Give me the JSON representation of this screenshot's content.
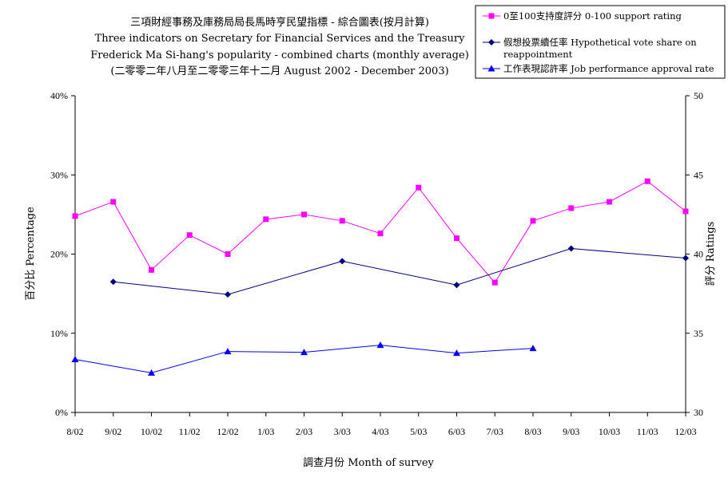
{
  "chart_data": {
    "type": "line",
    "title_lines": [
      "三項財經事務及庫務局局長馬時亨民望指標 - 綜合圖表(按月計算)",
      "Three indicators on Secretary for Financial Services and the Treasury",
      "Frederick Ma Si-hang's popularity - combined charts (monthly average)",
      "(二零零二年八月至二零零三年十二月 August 2002 - December 2003)"
    ],
    "xlabel": "調查月份 Month of survey",
    "ylabel_left": "百分比 Percentage",
    "ylabel_right": "評分 Ratings",
    "categories": [
      "8/02",
      "9/02",
      "10/02",
      "11/02",
      "12/02",
      "1/03",
      "2/03",
      "3/03",
      "4/03",
      "5/03",
      "6/03",
      "7/03",
      "8/03",
      "9/03",
      "10/03",
      "11/03",
      "12/03"
    ],
    "ylim_left": [
      0,
      40
    ],
    "left_ticks": [
      "0%",
      "10%",
      "20%",
      "30%",
      "40%"
    ],
    "ylim_right": [
      30,
      50
    ],
    "right_ticks": [
      "30",
      "35",
      "40",
      "45",
      "50"
    ],
    "grid": false,
    "legend_position": "top-right",
    "series": [
      {
        "name": "0至100支持度評分 0-100 support rating",
        "axis": "right",
        "color": "#ff00ff",
        "marker": "square",
        "values": [
          42.4,
          43.3,
          39.0,
          41.2,
          40.0,
          42.2,
          42.5,
          42.1,
          41.3,
          44.2,
          41.0,
          38.2,
          42.1,
          42.9,
          43.3,
          44.6,
          42.7
        ]
      },
      {
        "name": "假想投票續任率 Hypothetical vote share on reappointment",
        "axis": "left",
        "color": "#000080",
        "marker": "diamond",
        "values": [
          null,
          16.5,
          null,
          null,
          14.9,
          null,
          null,
          19.1,
          null,
          null,
          16.1,
          null,
          null,
          20.7,
          null,
          null,
          19.5
        ]
      },
      {
        "name": "工作表現認許率 Job performance approval rate",
        "axis": "left",
        "color": "#0000ff",
        "marker": "triangle",
        "values": [
          6.7,
          null,
          5.0,
          null,
          7.7,
          null,
          7.6,
          null,
          8.5,
          null,
          7.5,
          null,
          8.1,
          null,
          null,
          null,
          null
        ]
      }
    ]
  }
}
